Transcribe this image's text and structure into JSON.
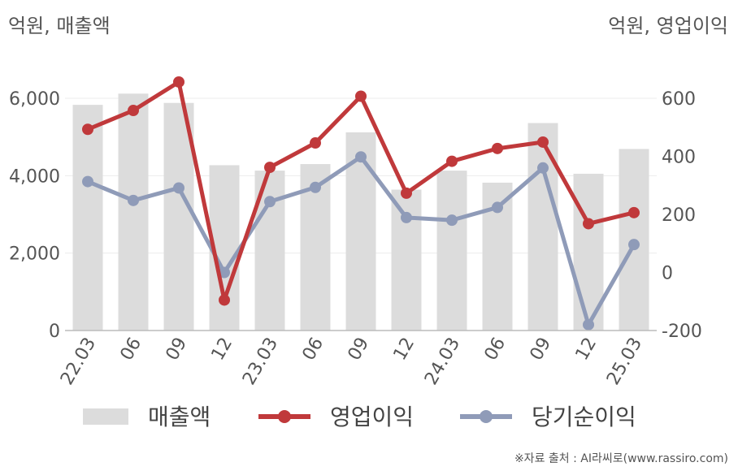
{
  "chart_data": {
    "type": "bar+line",
    "left_axis_unit": "억원, 매출액",
    "right_axis_unit": "억원, 영업이익",
    "categories": [
      "22.03",
      "06",
      "09",
      "12",
      "23.03",
      "06",
      "09",
      "12",
      "24.03",
      "06",
      "09",
      "12",
      "25.03"
    ],
    "left_ylim": [
      0,
      6000
    ],
    "left_ticks": [
      "0",
      "2,000",
      "4,000",
      "6,000"
    ],
    "left_tick_values": [
      0,
      2000,
      4000,
      6000
    ],
    "right_ylim": [
      -200,
      600
    ],
    "right_ticks": [
      "-200",
      "0",
      "200",
      "400",
      "600"
    ],
    "right_tick_values": [
      -200,
      0,
      200,
      400,
      600
    ],
    "series": [
      {
        "name": "매출액",
        "type": "bar",
        "axis": "left",
        "color": "#dcdcdc",
        "values": [
          5830,
          6120,
          5880,
          4270,
          4130,
          4300,
          5120,
          3640,
          4130,
          3820,
          5360,
          4050,
          4690
        ]
      },
      {
        "name": "영업이익",
        "type": "line",
        "axis": "right",
        "color": "#c0393b",
        "values": [
          493,
          558,
          656,
          -95,
          362,
          446,
          607,
          273,
          383,
          427,
          449,
          168,
          206
        ]
      },
      {
        "name": "당기순이익",
        "type": "line",
        "axis": "right",
        "color": "#8f9bb8",
        "values": [
          313,
          248,
          291,
          0,
          244,
          293,
          398,
          189,
          180,
          224,
          360,
          -180,
          96
        ]
      }
    ],
    "grid": true,
    "legend_position": "bottom"
  },
  "source": "※자료 출처 : AI라씨로(www.rassiro.com)"
}
